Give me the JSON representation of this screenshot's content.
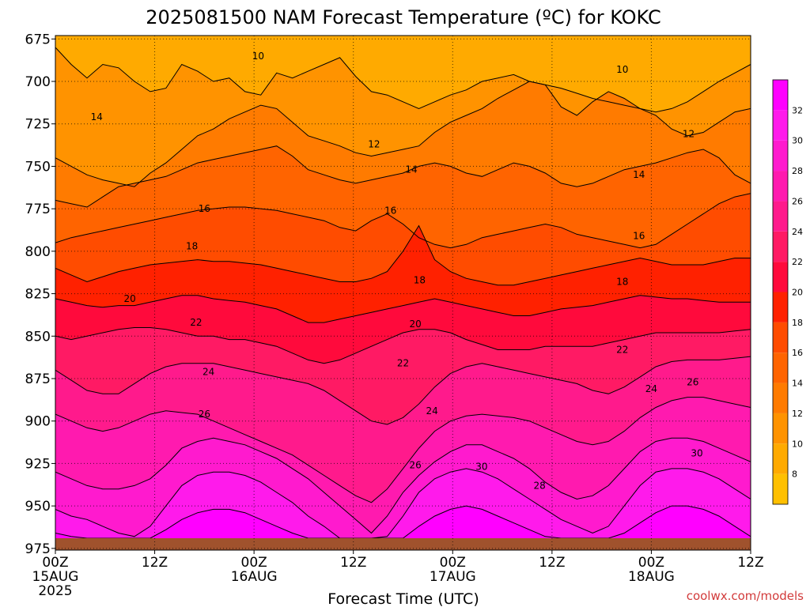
{
  "chart_data": {
    "type": "heatmap",
    "title": "2025081500 NAM Forecast Temperature (ºC) for KOKC",
    "xlabel": "Forecast Time (UTC)",
    "ylabel": "",
    "x_tick_labels": [
      {
        "hour": 0,
        "lines": [
          "00Z",
          "15AUG",
          "2025"
        ]
      },
      {
        "hour": 12,
        "lines": [
          "12Z"
        ]
      },
      {
        "hour": 24,
        "lines": [
          "00Z",
          "16AUG"
        ]
      },
      {
        "hour": 36,
        "lines": [
          "12Z"
        ]
      },
      {
        "hour": 48,
        "lines": [
          "00Z",
          "17AUG"
        ]
      },
      {
        "hour": 60,
        "lines": [
          "12Z"
        ]
      },
      {
        "hour": 72,
        "lines": [
          "00Z",
          "18AUG"
        ]
      },
      {
        "hour": 84,
        "lines": [
          "12Z"
        ]
      }
    ],
    "xlim": [
      0,
      84
    ],
    "y_ticks": [
      675,
      700,
      725,
      750,
      775,
      800,
      825,
      850,
      875,
      900,
      925,
      950,
      975
    ],
    "ylim": [
      673,
      976
    ],
    "surface_pressure": 969,
    "grid": true,
    "colorbar": {
      "ticks": [
        8,
        10,
        12,
        14,
        16,
        18,
        20,
        22,
        24,
        26,
        28,
        30,
        32
      ],
      "bins": [
        {
          "min": 6,
          "max": 8,
          "color": "#ffc000"
        },
        {
          "min": 8,
          "max": 10,
          "color": "#ffaa00"
        },
        {
          "min": 10,
          "max": 12,
          "color": "#ff9300"
        },
        {
          "min": 12,
          "max": 14,
          "color": "#ff7b00"
        },
        {
          "min": 14,
          "max": 16,
          "color": "#ff6400"
        },
        {
          "min": 16,
          "max": 18,
          "color": "#ff4c00"
        },
        {
          "min": 18,
          "max": 20,
          "color": "#ff2100"
        },
        {
          "min": 20,
          "max": 22,
          "color": "#ff0a3c"
        },
        {
          "min": 22,
          "max": 24,
          "color": "#ff1a64"
        },
        {
          "min": 24,
          "max": 26,
          "color": "#ff1a8c"
        },
        {
          "min": 26,
          "max": 28,
          "color": "#ff1aaf"
        },
        {
          "min": 28,
          "max": 30,
          "color": "#ff1ace"
        },
        {
          "min": 30,
          "max": 32,
          "color": "#ff1aeb"
        },
        {
          "min": 32,
          "max": 34,
          "color": "#ff00ff"
        }
      ]
    },
    "contours": [
      {
        "level": 10,
        "pressures": [
          680,
          690,
          698,
          690,
          692,
          700,
          706,
          704,
          690,
          694,
          700,
          698,
          706,
          708,
          695,
          698,
          694,
          690,
          686,
          697,
          706,
          708,
          712,
          716,
          712,
          708,
          705,
          700,
          698,
          696,
          700,
          702,
          704,
          707,
          710,
          712,
          714,
          716,
          718,
          716,
          712,
          706,
          700,
          695,
          690
        ]
      },
      {
        "level": 12,
        "pressures": [
          745,
          750,
          755,
          758,
          760,
          762,
          754,
          748,
          740,
          732,
          728,
          722,
          718,
          714,
          716,
          724,
          732,
          735,
          738,
          742,
          744,
          742,
          740,
          738,
          730,
          724,
          720,
          716,
          710,
          705,
          700,
          702,
          715,
          720,
          712,
          706,
          710,
          716,
          720,
          728,
          732,
          730,
          724,
          718,
          716
        ]
      },
      {
        "level": 14,
        "pressures": [
          770,
          772,
          774,
          768,
          762,
          760,
          758,
          756,
          752,
          748,
          746,
          744,
          742,
          740,
          738,
          744,
          752,
          755,
          758,
          760,
          758,
          756,
          754,
          750,
          748,
          750,
          754,
          756,
          752,
          748,
          750,
          754,
          760,
          762,
          760,
          756,
          752,
          750,
          748,
          745,
          742,
          740,
          745,
          755,
          760
        ]
      },
      {
        "level": 16,
        "pressures": [
          795,
          792,
          790,
          788,
          786,
          784,
          782,
          780,
          778,
          776,
          775,
          774,
          774,
          775,
          776,
          778,
          780,
          782,
          786,
          788,
          782,
          778,
          784,
          792,
          796,
          798,
          796,
          792,
          790,
          788,
          786,
          784,
          786,
          790,
          792,
          794,
          796,
          798,
          796,
          790,
          784,
          778,
          772,
          768,
          766
        ]
      },
      {
        "level": 18,
        "pressures": [
          810,
          814,
          818,
          815,
          812,
          810,
          808,
          807,
          806,
          805,
          806,
          806,
          807,
          808,
          810,
          812,
          814,
          816,
          818,
          818,
          816,
          812,
          800,
          785,
          805,
          812,
          816,
          818,
          820,
          820,
          818,
          816,
          814,
          812,
          810,
          808,
          806,
          804,
          806,
          808,
          808,
          808,
          806,
          804,
          804
        ]
      },
      {
        "level": 20,
        "pressures": [
          828,
          830,
          832,
          833,
          832,
          832,
          830,
          828,
          826,
          826,
          828,
          829,
          830,
          832,
          834,
          838,
          842,
          842,
          840,
          838,
          836,
          834,
          832,
          830,
          828,
          830,
          832,
          834,
          836,
          838,
          838,
          836,
          834,
          833,
          832,
          830,
          828,
          826,
          827,
          828,
          828,
          829,
          830,
          830,
          830
        ]
      },
      {
        "level": 22,
        "pressures": [
          850,
          852,
          850,
          848,
          846,
          845,
          845,
          846,
          848,
          850,
          850,
          852,
          852,
          854,
          856,
          860,
          864,
          866,
          864,
          860,
          856,
          852,
          848,
          846,
          846,
          848,
          852,
          855,
          858,
          858,
          858,
          856,
          856,
          856,
          856,
          854,
          852,
          850,
          848,
          848,
          848,
          848,
          848,
          847,
          846
        ]
      },
      {
        "level": 24,
        "pressures": [
          870,
          876,
          882,
          884,
          884,
          878,
          872,
          868,
          866,
          866,
          866,
          868,
          870,
          872,
          874,
          876,
          878,
          882,
          888,
          894,
          900,
          902,
          898,
          890,
          880,
          872,
          868,
          866,
          868,
          870,
          872,
          874,
          876,
          878,
          882,
          884,
          880,
          874,
          868,
          865,
          864,
          864,
          864,
          863,
          862
        ]
      },
      {
        "level": 26,
        "pressures": [
          896,
          900,
          904,
          906,
          904,
          900,
          896,
          894,
          895,
          896,
          900,
          904,
          908,
          912,
          916,
          920,
          926,
          932,
          938,
          944,
          948,
          940,
          928,
          916,
          906,
          900,
          897,
          896,
          897,
          898,
          900,
          904,
          908,
          912,
          914,
          912,
          906,
          898,
          892,
          888,
          886,
          886,
          888,
          890,
          892
        ]
      },
      {
        "level": 28,
        "pressures": [
          930,
          934,
          938,
          940,
          940,
          938,
          934,
          926,
          916,
          912,
          910,
          912,
          914,
          918,
          922,
          928,
          934,
          942,
          950,
          958,
          966,
          956,
          942,
          932,
          924,
          918,
          914,
          914,
          918,
          922,
          928,
          936,
          942,
          946,
          944,
          938,
          928,
          918,
          912,
          910,
          910,
          912,
          916,
          920,
          924
        ]
      },
      {
        "level": 30,
        "pressures": [
          952,
          956,
          958,
          962,
          966,
          968,
          962,
          950,
          938,
          932,
          930,
          930,
          932,
          936,
          942,
          948,
          956,
          962,
          969,
          969,
          969,
          968,
          956,
          942,
          934,
          930,
          928,
          930,
          934,
          940,
          946,
          952,
          958,
          962,
          966,
          962,
          950,
          938,
          930,
          928,
          928,
          930,
          934,
          940,
          946
        ]
      },
      {
        "level": 32,
        "pressures": [
          966,
          968,
          969,
          969,
          969,
          969,
          969,
          964,
          958,
          954,
          952,
          952,
          954,
          958,
          962,
          966,
          969,
          969,
          969,
          969,
          969,
          969,
          969,
          962,
          956,
          952,
          950,
          952,
          956,
          960,
          964,
          968,
          969,
          969,
          969,
          969,
          966,
          960,
          954,
          950,
          950,
          952,
          956,
          962,
          968
        ]
      }
    ],
    "contour_labels": [
      {
        "text": "10",
        "hour": 24.5,
        "pressure": 685
      },
      {
        "text": "10",
        "hour": 68.5,
        "pressure": 693
      },
      {
        "text": "12",
        "hour": 38.5,
        "pressure": 737
      },
      {
        "text": "12",
        "hour": 76.5,
        "pressure": 731
      },
      {
        "text": "14",
        "hour": 5,
        "pressure": 721
      },
      {
        "text": "14",
        "hour": 43,
        "pressure": 752
      },
      {
        "text": "14",
        "hour": 70.5,
        "pressure": 755
      },
      {
        "text": "16",
        "hour": 18,
        "pressure": 775
      },
      {
        "text": "16",
        "hour": 40.5,
        "pressure": 776
      },
      {
        "text": "16",
        "hour": 70.5,
        "pressure": 791
      },
      {
        "text": "18",
        "hour": 16.5,
        "pressure": 797
      },
      {
        "text": "18",
        "hour": 44,
        "pressure": 817
      },
      {
        "text": "18",
        "hour": 68.5,
        "pressure": 818
      },
      {
        "text": "20",
        "hour": 9,
        "pressure": 828
      },
      {
        "text": "20",
        "hour": 43.5,
        "pressure": 843
      },
      {
        "text": "22",
        "hour": 17,
        "pressure": 842
      },
      {
        "text": "22",
        "hour": 42,
        "pressure": 866
      },
      {
        "text": "22",
        "hour": 68.5,
        "pressure": 858
      },
      {
        "text": "24",
        "hour": 18.5,
        "pressure": 871
      },
      {
        "text": "24",
        "hour": 45.5,
        "pressure": 894
      },
      {
        "text": "24",
        "hour": 72,
        "pressure": 881
      },
      {
        "text": "26",
        "hour": 18,
        "pressure": 896
      },
      {
        "text": "26",
        "hour": 43.5,
        "pressure": 926
      },
      {
        "text": "26",
        "hour": 77,
        "pressure": 877
      },
      {
        "text": "28",
        "hour": 58.5,
        "pressure": 938
      },
      {
        "text": "30",
        "hour": 51.5,
        "pressure": 927
      },
      {
        "text": "30",
        "hour": 77.5,
        "pressure": 919
      }
    ]
  },
  "footer": {
    "credit": "coolwx.com/models"
  }
}
